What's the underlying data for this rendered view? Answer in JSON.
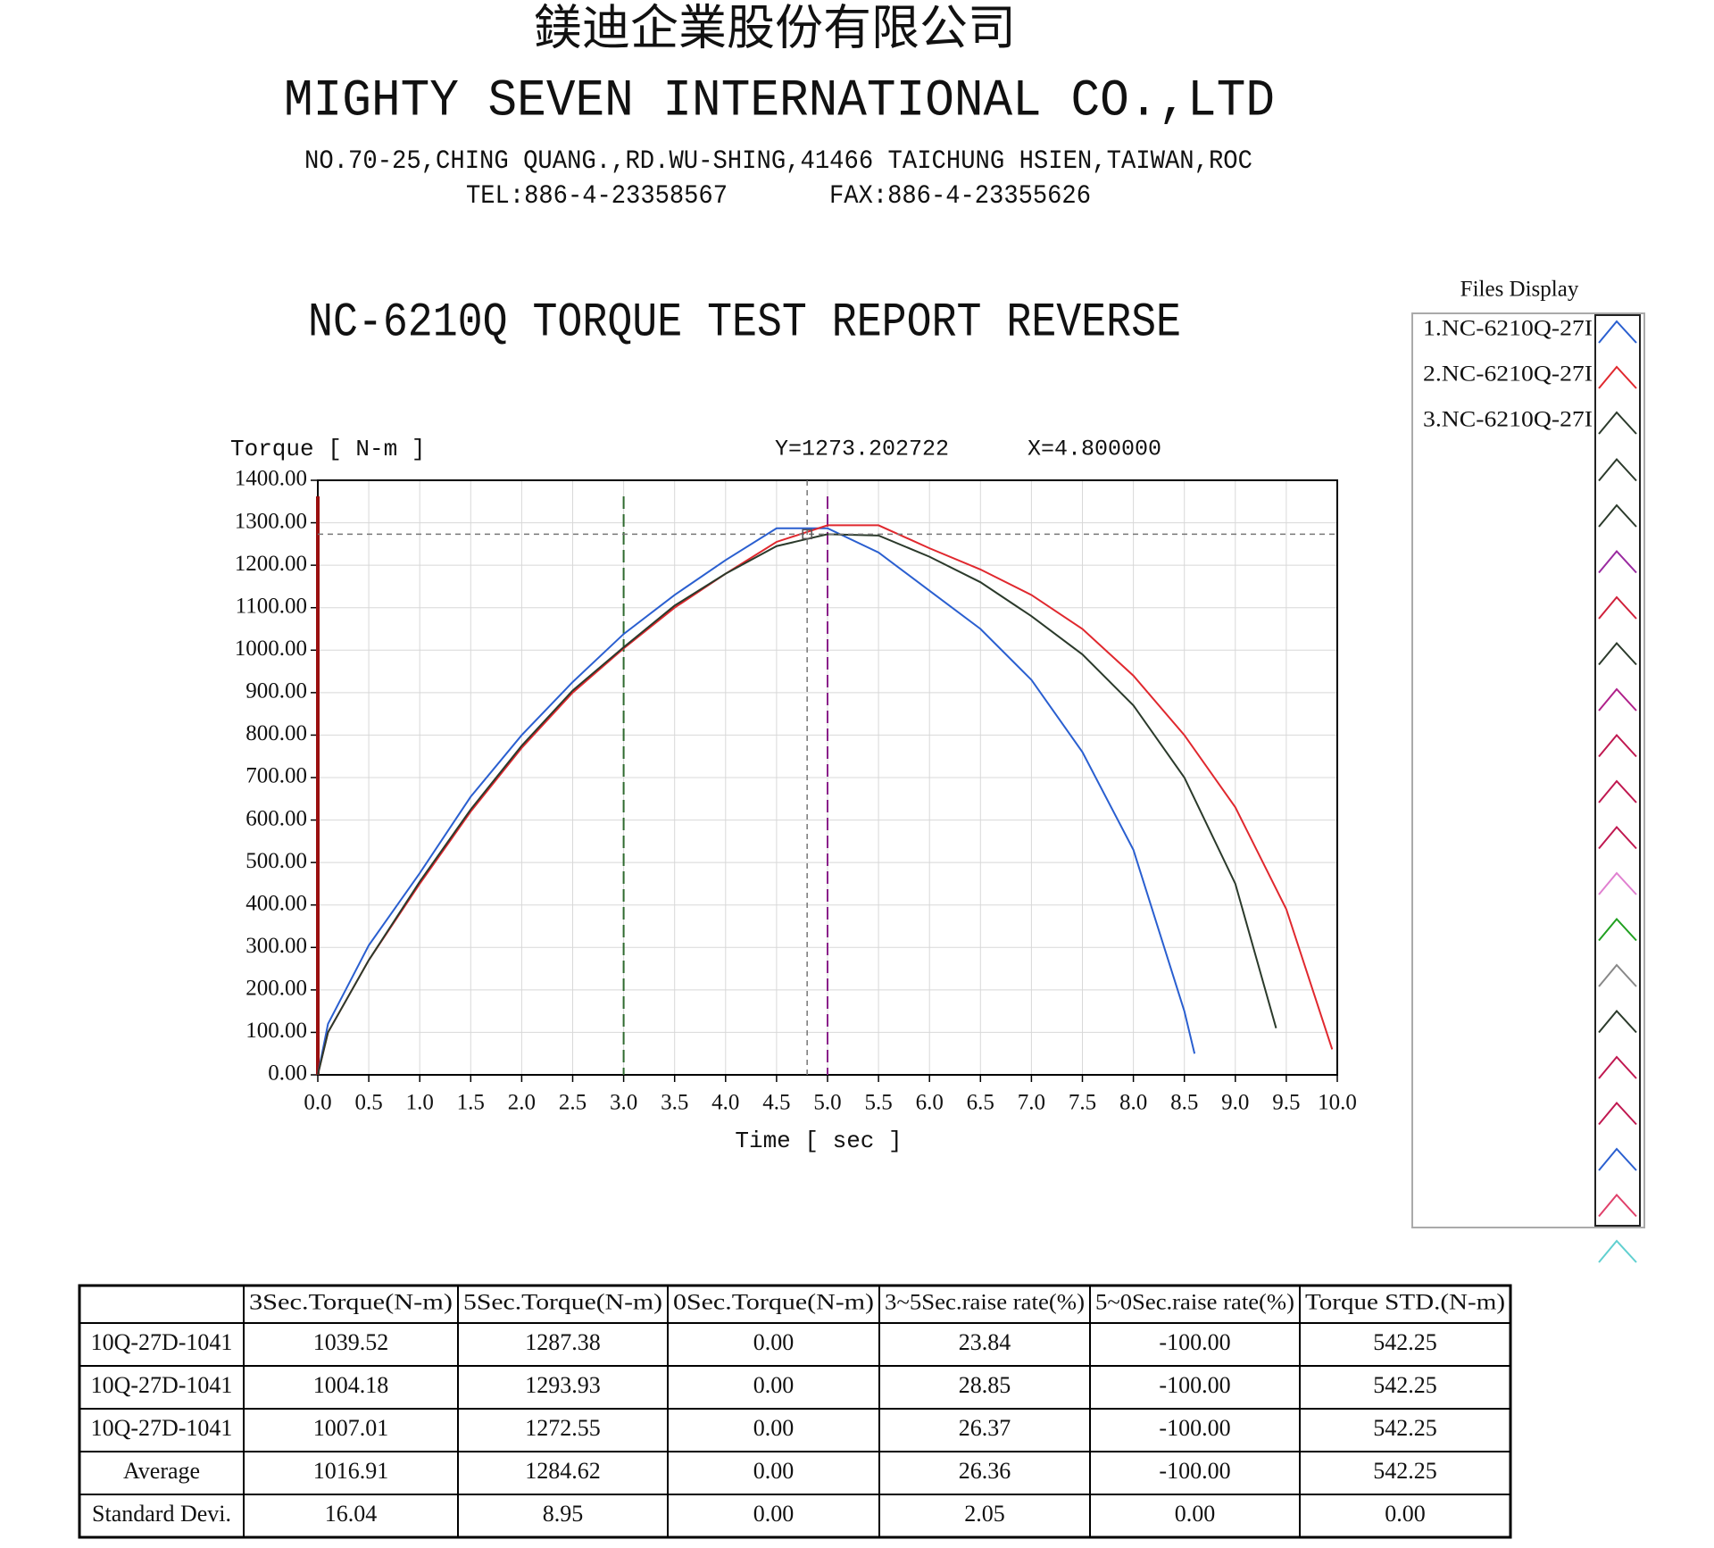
{
  "header": {
    "company_cn": "鎂迪企業股份有限公司",
    "company_en": "MIGHTY SEVEN INTERNATIONAL CO.,LTD",
    "address": "NO.70-25,CHING QUANG.,RD.WU-SHING,41466 TAICHUNG HSIEN,TAIWAN,ROC",
    "tel": "TEL:886-4-23358567",
    "fax": "FAX:886-4-23355626"
  },
  "chart_data": {
    "type": "line",
    "title": "NC-6210Q TORQUE TEST REPORT REVERSE",
    "y_label": "Torque [ N-m  ]",
    "x_label": "Time [ sec ]",
    "cursor": {
      "x": 4.8,
      "y": 1273.202722,
      "x_text": "X=4.800000",
      "y_text": "Y=1273.202722"
    },
    "markers": [
      {
        "x": 0,
        "color": "#9a1010"
      },
      {
        "x": 3,
        "color": "#2f6a2f"
      },
      {
        "x": 5,
        "color": "#8a208a"
      }
    ],
    "legend_title": "Files Display",
    "xlim": [
      0,
      10
    ],
    "ylim": [
      0,
      1400
    ],
    "xticks": [
      {
        "value": 0,
        "label": "0.0"
      },
      {
        "value": 0.5,
        "label": "0.5"
      },
      {
        "value": 1,
        "label": "1.0"
      },
      {
        "value": 1.5,
        "label": "1.5"
      },
      {
        "value": 2,
        "label": "2.0"
      },
      {
        "value": 2.5,
        "label": "2.5"
      },
      {
        "value": 3,
        "label": "3.0"
      },
      {
        "value": 3.5,
        "label": "3.5"
      },
      {
        "value": 4,
        "label": "4.0"
      },
      {
        "value": 4.5,
        "label": "4.5"
      },
      {
        "value": 5,
        "label": "5.0"
      },
      {
        "value": 5.5,
        "label": "5.5"
      },
      {
        "value": 6,
        "label": "6.0"
      },
      {
        "value": 6.5,
        "label": "6.5"
      },
      {
        "value": 7,
        "label": "7.0"
      },
      {
        "value": 7.5,
        "label": "7.5"
      },
      {
        "value": 8,
        "label": "8.0"
      },
      {
        "value": 8.5,
        "label": "8.5"
      },
      {
        "value": 9,
        "label": "9.0"
      },
      {
        "value": 9.5,
        "label": "9.5"
      },
      {
        "value": 10,
        "label": "10.0"
      }
    ],
    "yticks": [
      {
        "value": 0,
        "label": "0.00"
      },
      {
        "value": 100,
        "label": "100.00"
      },
      {
        "value": 200,
        "label": "200.00"
      },
      {
        "value": 300,
        "label": "300.00"
      },
      {
        "value": 400,
        "label": "400.00"
      },
      {
        "value": 500,
        "label": "500.00"
      },
      {
        "value": 600,
        "label": "600.00"
      },
      {
        "value": 700,
        "label": "700.00"
      },
      {
        "value": 800,
        "label": "800.00"
      },
      {
        "value": 900,
        "label": "900.00"
      },
      {
        "value": 1000,
        "label": "1000.00"
      },
      {
        "value": 1100,
        "label": "1100.00"
      },
      {
        "value": 1200,
        "label": "1200.00"
      },
      {
        "value": 1300,
        "label": "1300.00"
      },
      {
        "value": 1400,
        "label": "1400.00"
      }
    ],
    "grid": true,
    "series": [
      {
        "name": "1.NC-6210Q-27I",
        "color": "#2a5fd0",
        "x": [
          0,
          0.1,
          0.5,
          1,
          1.5,
          2,
          2.5,
          3,
          3.5,
          4,
          4.5,
          5,
          5.5,
          6,
          6.5,
          7,
          7.5,
          8,
          8.5,
          8.6
        ],
        "values": [
          0,
          120,
          305,
          475,
          655,
          800,
          925,
          1038,
          1130,
          1212,
          1287,
          1287,
          1230,
          1140,
          1050,
          930,
          760,
          530,
          150,
          50
        ]
      },
      {
        "name": "2.NC-6210Q-27I",
        "color": "#e0282e",
        "x": [
          0,
          0.1,
          0.5,
          1,
          1.5,
          2,
          2.5,
          3,
          3.5,
          4,
          4.5,
          5,
          5.5,
          6,
          6.5,
          7,
          7.5,
          8,
          8.5,
          9,
          9.5,
          9.95
        ],
        "values": [
          0,
          100,
          270,
          450,
          620,
          770,
          900,
          1004,
          1100,
          1180,
          1255,
          1294,
          1294,
          1240,
          1190,
          1130,
          1050,
          940,
          800,
          630,
          390,
          60
        ]
      },
      {
        "name": "3.NC-6210Q-27I",
        "color": "#2b3a2b",
        "x": [
          0,
          0.1,
          0.5,
          1,
          1.5,
          2,
          2.5,
          3,
          3.5,
          4,
          4.5,
          5,
          5.5,
          6,
          6.5,
          7,
          7.5,
          8,
          8.5,
          9,
          9.4
        ],
        "values": [
          0,
          100,
          270,
          455,
          625,
          775,
          905,
          1007,
          1105,
          1180,
          1245,
          1273,
          1270,
          1220,
          1160,
          1080,
          990,
          870,
          700,
          450,
          110
        ]
      }
    ]
  },
  "table": {
    "columns": [
      "3Sec.Torque(N-m)",
      "5Sec.Torque(N-m)",
      "0Sec.Torque(N-m)",
      "3~5Sec.raise rate(%)",
      "5~0Sec.raise rate(%)",
      "Torque STD.(N-m)"
    ],
    "rows": [
      {
        "label": "10Q-27D-1041",
        "cells": [
          "1039.52",
          "1287.38",
          "0.00",
          "23.84",
          "-100.00",
          "542.25"
        ]
      },
      {
        "label": "10Q-27D-1041",
        "cells": [
          "1004.18",
          "1293.93",
          "0.00",
          "28.85",
          "-100.00",
          "542.25"
        ]
      },
      {
        "label": "10Q-27D-1041",
        "cells": [
          "1007.01",
          "1272.55",
          "0.00",
          "26.37",
          "-100.00",
          "542.25"
        ]
      },
      {
        "label": "Average",
        "cells": [
          "1016.91",
          "1284.62",
          "0.00",
          "26.36",
          "-100.00",
          "542.25"
        ]
      },
      {
        "label": "Standard Devi.",
        "cells": [
          "16.04",
          "8.95",
          "0.00",
          "2.05",
          "0.00",
          "0.00"
        ]
      }
    ]
  }
}
